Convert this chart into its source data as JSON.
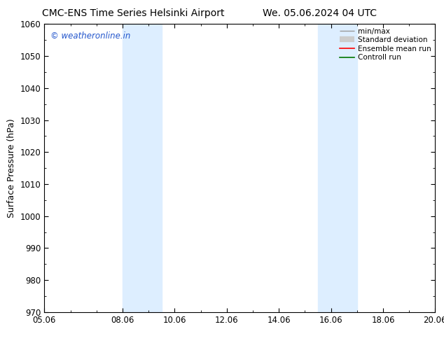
{
  "title_left": "CMC-ENS Time Series Helsinki Airport",
  "title_right": "We. 05.06.2024 04 UTC",
  "ylabel": "Surface Pressure (hPa)",
  "ylim": [
    970,
    1060
  ],
  "yticks": [
    970,
    980,
    990,
    1000,
    1010,
    1020,
    1030,
    1040,
    1050,
    1060
  ],
  "xlim_start": 0,
  "xlim_end": 15,
  "xtick_labels": [
    "05.06",
    "08.06",
    "10.06",
    "12.06",
    "14.06",
    "16.06",
    "18.06",
    "20.06"
  ],
  "xtick_positions": [
    0,
    3,
    5,
    7,
    9,
    11,
    13,
    15
  ],
  "shaded_bands": [
    {
      "xmin": 3.0,
      "xmax": 4.5
    },
    {
      "xmin": 10.5,
      "xmax": 12.0
    }
  ],
  "shade_color": "#ddeeff",
  "shade_alpha": 1.0,
  "watermark_text": "© weatheronline.in",
  "watermark_color": "#2255cc",
  "bg_color": "#ffffff",
  "title_fontsize": 10,
  "axis_fontsize": 9,
  "tick_fontsize": 8.5,
  "legend_labels": [
    "min/max",
    "Standard deviation",
    "Ensemble mean run",
    "Controll run"
  ],
  "legend_line1_color": "#999999",
  "legend_line2_color": "#cccccc",
  "legend_line3_color": "#ff0000",
  "legend_line4_color": "#007700"
}
